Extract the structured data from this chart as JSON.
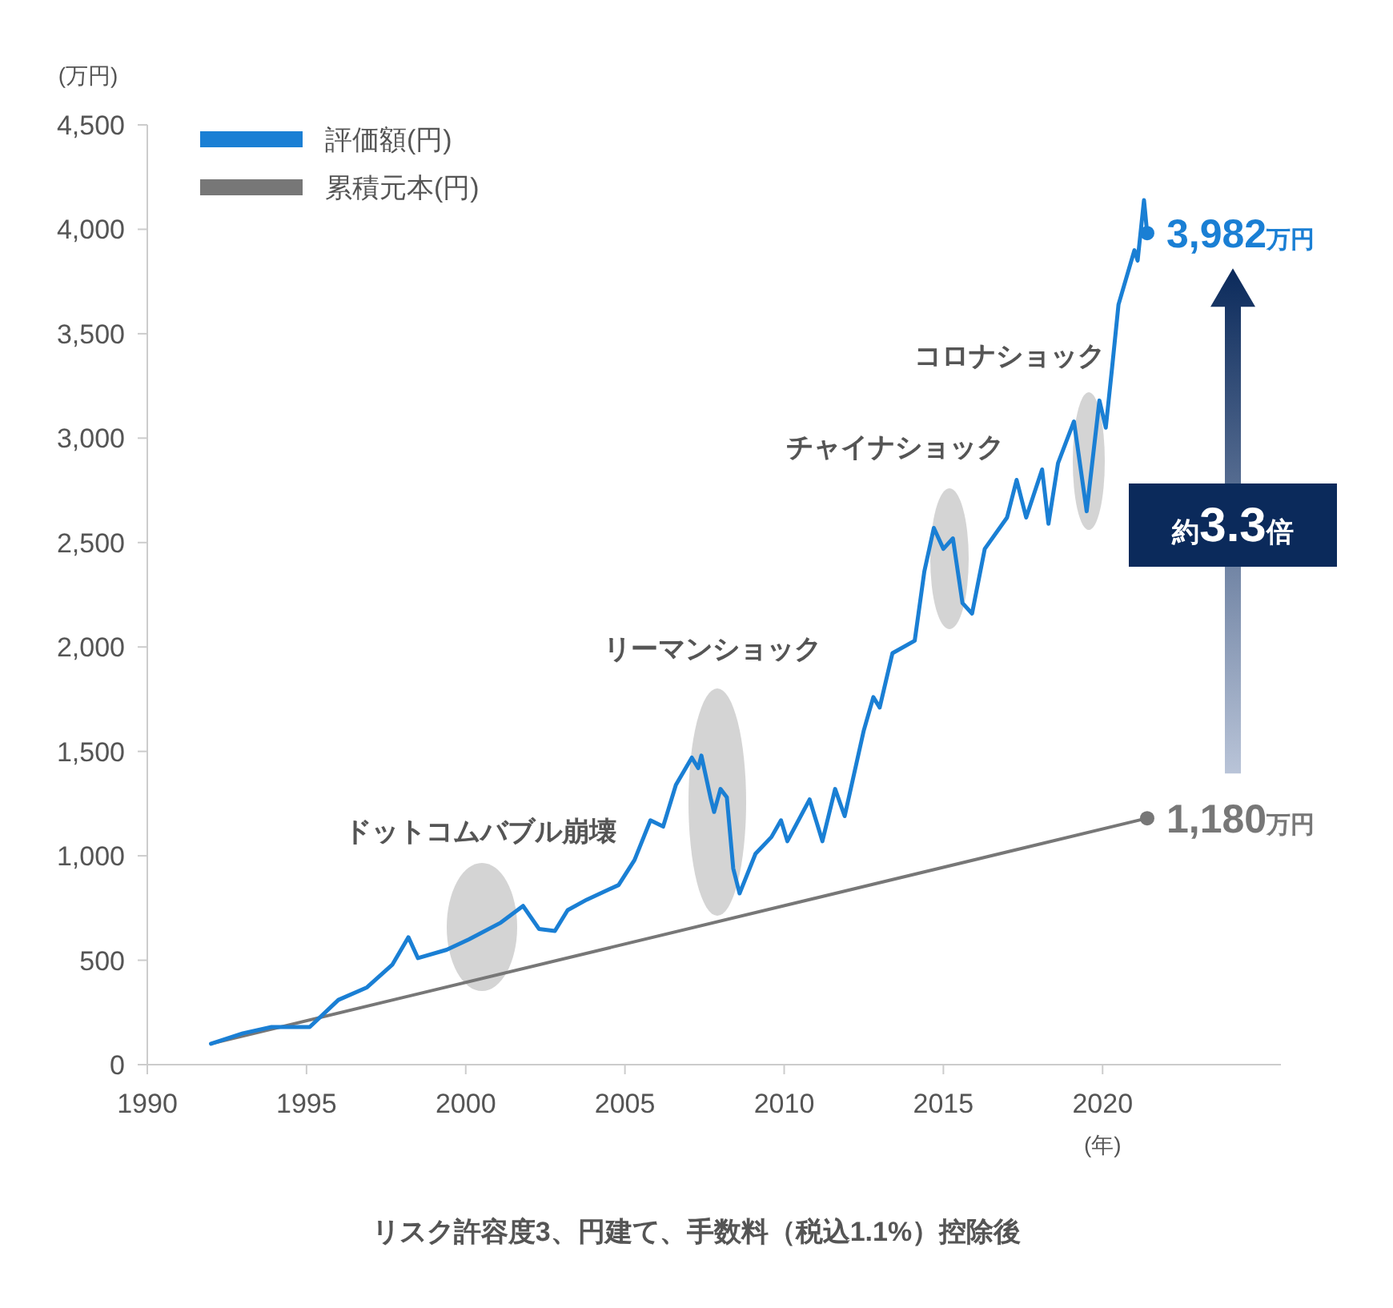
{
  "chart_data": {
    "type": "line",
    "ylabel": "(万円)",
    "xlabel": "(年)",
    "xlim": [
      1990,
      2025.6
    ],
    "xticks": [
      1990,
      1995,
      2000,
      2005,
      2010,
      2015,
      2020
    ],
    "ylim": [
      0,
      4500
    ],
    "yticks": [
      {
        "value": 0,
        "label": "0"
      },
      {
        "value": 500,
        "label": "500"
      },
      {
        "value": 1000,
        "label": "1,000"
      },
      {
        "value": 1500,
        "label": "1,500"
      },
      {
        "value": 2000,
        "label": "2,000"
      },
      {
        "value": 2500,
        "label": "2,500"
      },
      {
        "value": 3000,
        "label": "3,000"
      },
      {
        "value": 3500,
        "label": "3,500"
      },
      {
        "value": 4000,
        "label": "4,000"
      },
      {
        "value": 4500,
        "label": "4,500"
      }
    ],
    "grid": false,
    "legend": "top left",
    "series": [
      {
        "name": "累積元本(円)",
        "color": "#777777",
        "x": [
          1992,
          2021.4
        ],
        "values": [
          100,
          1180
        ],
        "value_labels": [
          null,
          "1,180万円"
        ]
      },
      {
        "name": "評価額(円)",
        "color": "#1a7fd4",
        "x": [
          1992.0,
          1993.0,
          1993.9,
          1995.1,
          1996.0,
          1996.9,
          1997.7,
          1998.2,
          1998.5,
          1999.4,
          2000.1,
          2001.1,
          2001.8,
          2002.3,
          2002.8,
          2003.2,
          2003.8,
          2004.8,
          2005.3,
          2005.8,
          2006.2,
          2006.6,
          2007.1,
          2007.3,
          2007.4,
          2007.7,
          2007.8,
          2008.0,
          2008.2,
          2008.4,
          2008.6,
          2009.1,
          2009.6,
          2009.9,
          2010.1,
          2010.8,
          2011.2,
          2011.6,
          2011.9,
          2012.5,
          2012.8,
          2013.0,
          2013.4,
          2014.1,
          2014.4,
          2014.7,
          2015.0,
          2015.3,
          2015.6,
          2015.9,
          2016.3,
          2017.0,
          2017.3,
          2017.6,
          2018.1,
          2018.3,
          2018.6,
          2019.1,
          2019.5,
          2019.9,
          2020.1,
          2020.3,
          2020.5,
          2021.0,
          2021.1,
          2021.3,
          2021.4
        ],
        "values": [
          100,
          150,
          180,
          180,
          310,
          370,
          480,
          610,
          510,
          550,
          600,
          680,
          760,
          650,
          640,
          740,
          790,
          860,
          980,
          1170,
          1140,
          1340,
          1470,
          1420,
          1480,
          1270,
          1210,
          1320,
          1280,
          940,
          820,
          1010,
          1090,
          1170,
          1070,
          1270,
          1070,
          1320,
          1190,
          1600,
          1760,
          1710,
          1970,
          2030,
          2360,
          2570,
          2470,
          2520,
          2210,
          2160,
          2470,
          2620,
          2800,
          2620,
          2850,
          2590,
          2880,
          3080,
          2650,
          3180,
          3050,
          3340,
          3640,
          3900,
          3850,
          4140,
          3982
        ],
        "value_labels": [
          null,
          null,
          null,
          null,
          null,
          null,
          null,
          null,
          null,
          null,
          null,
          null,
          null,
          null,
          null,
          null,
          null,
          null,
          null,
          null,
          null,
          null,
          null,
          null,
          null,
          null,
          null,
          null,
          null,
          null,
          null,
          null,
          null,
          null,
          null,
          null,
          null,
          null,
          null,
          null,
          null,
          null,
          null,
          null,
          null,
          null,
          null,
          null,
          null,
          null,
          null,
          null,
          null,
          null,
          null,
          null,
          null,
          null,
          null,
          null,
          null,
          null,
          null,
          null,
          null,
          null,
          "3,982万円"
        ]
      }
    ],
    "annotations": [
      "ドットコムバブル崩壊",
      "リーマンショック",
      "チャイナショック",
      "コロナショック",
      "約3.3倍",
      "リスク許容度3、円建て、手数料（税込1.1%）控除後"
    ]
  }
}
